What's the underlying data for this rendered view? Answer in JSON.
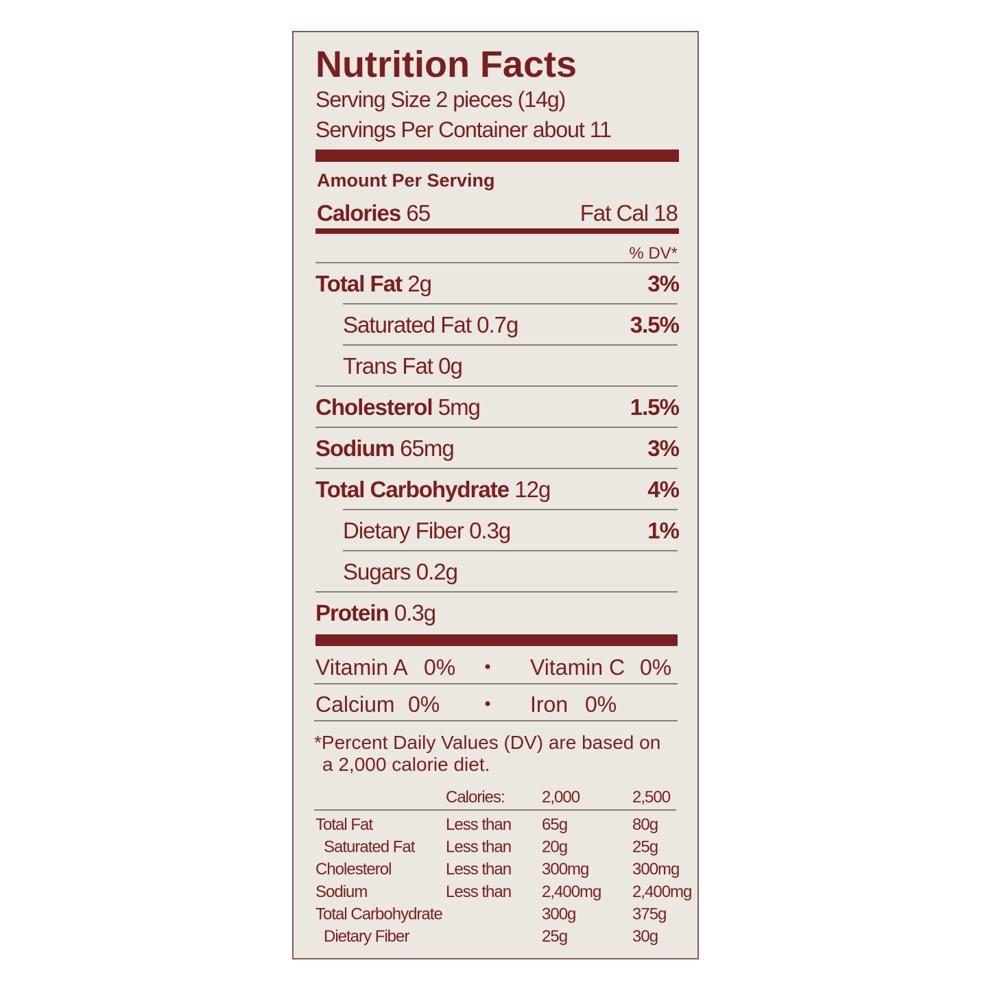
{
  "title": "Nutrition Facts",
  "serving_size": "Serving Size 2 pieces (14g)",
  "servings_per_container": "Servings Per Container about 11",
  "amount_per_serving": "Amount Per Serving",
  "calories": {
    "label": "Calories",
    "value": "65"
  },
  "fat_calories": "Fat Cal 18",
  "dv_header": "% DV*",
  "nutrients": [
    {
      "name": "Total Fat",
      "amount": "2g",
      "dv": "3%",
      "indent": false
    },
    {
      "name": "Saturated Fat",
      "amount": "0.7g",
      "dv": "3.5%",
      "indent": true
    },
    {
      "name": "Trans Fat",
      "amount": "0g",
      "indent": true
    },
    {
      "name": "Cholesterol",
      "amount": "5mg",
      "dv": "1.5%",
      "indent": false
    },
    {
      "name": "Sodium",
      "amount": "65mg",
      "dv": "3%",
      "indent": false
    },
    {
      "name": "Total Carbohydrate",
      "amount": "12g",
      "dv": "4%",
      "indent": false
    },
    {
      "name": "Dietary Fiber",
      "amount": "0.3g",
      "dv": "1%",
      "indent": true
    },
    {
      "name": "Sugars",
      "amount": "0.2g",
      "indent": true
    },
    {
      "name": "Protein",
      "amount": "0.3g",
      "indent": false
    }
  ],
  "vitamins": [
    [
      {
        "name": "Vitamin A",
        "value": "0%"
      },
      {
        "name": "Vitamin C",
        "value": "0%"
      }
    ],
    [
      {
        "name": "Calcium",
        "value": "0%"
      },
      {
        "name": "Iron",
        "value": "0%"
      }
    ]
  ],
  "footnote": [
    "*Percent Daily Values (DV) are based on",
    "a 2,000 calorie diet."
  ],
  "daily_values_table": {
    "header": {
      "label": "Calories:",
      "v2000": "2,000",
      "v2500": "2,500"
    },
    "rows": [
      {
        "name": "Total Fat",
        "qualifier": "Less than",
        "v2000": "65g",
        "v2500": "80g",
        "indent": false
      },
      {
        "name": "Saturated Fat",
        "qualifier": "Less than",
        "v2000": "20g",
        "v2500": "25g",
        "indent": true
      },
      {
        "name": "Cholesterol",
        "qualifier": "Less than",
        "v2000": "300mg",
        "v2500": "300mg",
        "indent": false
      },
      {
        "name": "Sodium",
        "qualifier": "Less than",
        "v2000": "2,400mg",
        "v2500": "2,400mg",
        "indent": false
      },
      {
        "name": "Total Carbohydrate",
        "v2000": "300g",
        "v2500": "375g",
        "indent": false
      },
      {
        "name": "Dietary Fiber",
        "v2000": "25g",
        "v2500": "30g",
        "indent": true
      }
    ]
  }
}
